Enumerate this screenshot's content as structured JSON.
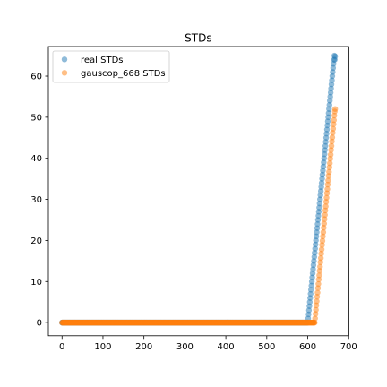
{
  "chart_data": {
    "type": "scatter",
    "title": "STDs",
    "xlabel": "",
    "ylabel": "",
    "xlim": [
      -33.35,
      700.35
    ],
    "ylim": [
      -3.2,
      67.2
    ],
    "xticks": [
      0,
      100,
      200,
      300,
      400,
      500,
      600,
      700
    ],
    "yticks": [
      0,
      10,
      20,
      30,
      40,
      50,
      60
    ],
    "grid": false,
    "legend_position": "upper-left",
    "series": [
      {
        "name": "real STDs",
        "color": "#1f77b4",
        "baseline": {
          "x_start": 0,
          "x_end": 600,
          "x_step": 1,
          "y": 0
        },
        "x": [
          601,
          602,
          603,
          604,
          605,
          606,
          607,
          608,
          609,
          610,
          611,
          612,
          613,
          614,
          615,
          616,
          617,
          618,
          619,
          620,
          621,
          622,
          623,
          624,
          625,
          626,
          627,
          628,
          629,
          630,
          631,
          632,
          633,
          634,
          635,
          636,
          637,
          638,
          639,
          640,
          641,
          642,
          643,
          644,
          645,
          646,
          647,
          648,
          649,
          650,
          651,
          652,
          653,
          654,
          655,
          656,
          657,
          658,
          659,
          660,
          661,
          662,
          663,
          664,
          665,
          666,
          667
        ],
        "y": [
          1.0,
          2.0,
          3.0,
          4.0,
          5.0,
          6.0,
          7.0,
          8.0,
          9.0,
          10.0,
          11.0,
          12.0,
          13.0,
          14.0,
          15.0,
          16.0,
          17.0,
          18.0,
          19.0,
          20.0,
          21.0,
          22.0,
          23.0,
          24.0,
          25.0,
          26.0,
          27.0,
          28.0,
          29.0,
          30.0,
          31.0,
          32.0,
          33.0,
          34.0,
          35.0,
          36.0,
          37.0,
          38.0,
          39.0,
          40.0,
          41.0,
          42.0,
          43.0,
          44.0,
          45.0,
          46.0,
          47.0,
          48.0,
          49.0,
          50.0,
          51.0,
          52.0,
          53.0,
          54.0,
          55.0,
          56.0,
          57.0,
          58.0,
          59.0,
          60.0,
          61.0,
          62.0,
          63.0,
          64.0,
          65.0,
          64.0,
          64.8
        ]
      },
      {
        "name": "gauscop_668 STDs",
        "color": "#ff7f0e",
        "baseline": {
          "x_start": 0,
          "x_end": 617,
          "x_step": 1,
          "y": 0
        },
        "x": [
          618,
          619,
          620,
          621,
          622,
          623,
          624,
          625,
          626,
          627,
          628,
          629,
          630,
          631,
          632,
          633,
          634,
          635,
          636,
          637,
          638,
          639,
          640,
          641,
          642,
          643,
          644,
          645,
          646,
          647,
          648,
          649,
          650,
          651,
          652,
          653,
          654,
          655,
          656,
          657,
          658,
          659,
          660,
          661,
          662,
          663,
          664,
          665,
          666,
          667
        ],
        "y": [
          1.0,
          2.1,
          3.1,
          4.2,
          5.2,
          6.3,
          7.3,
          8.4,
          9.4,
          10.5,
          11.5,
          12.6,
          13.6,
          14.7,
          15.7,
          16.8,
          17.8,
          18.9,
          19.9,
          21.0,
          22.0,
          23.1,
          24.1,
          25.2,
          26.2,
          27.3,
          28.3,
          29.4,
          30.4,
          31.5,
          32.5,
          33.6,
          34.6,
          35.7,
          36.7,
          37.8,
          38.8,
          39.9,
          40.9,
          42.0,
          43.0,
          44.1,
          45.1,
          46.2,
          47.2,
          48.3,
          49.3,
          50.4,
          51.4,
          52.0
        ]
      }
    ]
  }
}
